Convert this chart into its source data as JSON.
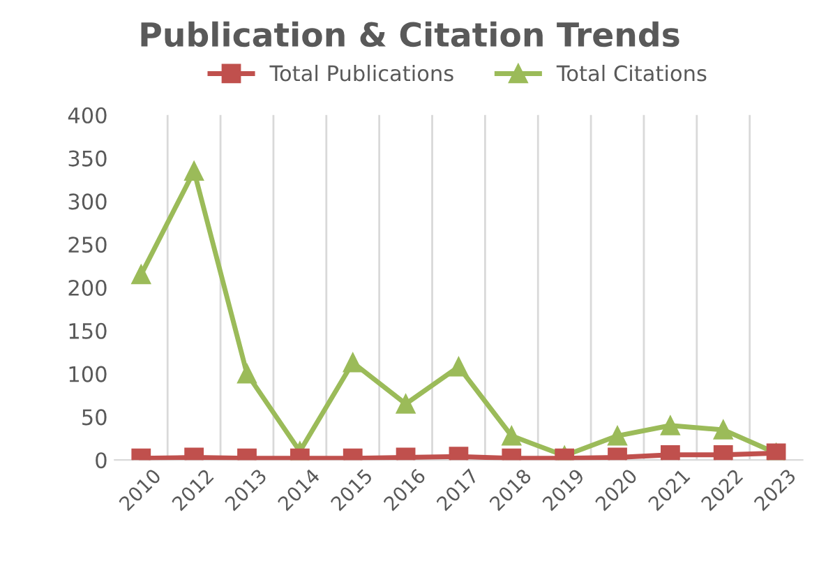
{
  "chart_data": {
    "type": "line",
    "title": "Publication & Citation Trends",
    "categories": [
      "2010",
      "2012",
      "2013",
      "2014",
      "2015",
      "2016",
      "2017",
      "2018",
      "2019",
      "2020",
      "2021",
      "2022",
      "2023"
    ],
    "series": [
      {
        "name": "Total Publications",
        "color": "#c0504d",
        "marker": "square",
        "values": [
          2,
          3,
          2,
          2,
          2,
          3,
          4,
          2,
          2,
          3,
          6,
          6,
          8
        ]
      },
      {
        "name": "Total Citations",
        "color": "#9bbb59",
        "marker": "triangle",
        "values": [
          215,
          335,
          100,
          10,
          113,
          65,
          108,
          28,
          5,
          28,
          40,
          35,
          8
        ]
      }
    ],
    "ylim": [
      0,
      400
    ],
    "yticks": [
      0,
      50,
      100,
      150,
      200,
      250,
      300,
      350,
      400
    ],
    "grid": "x",
    "legend": "top",
    "line_style": "solid"
  }
}
